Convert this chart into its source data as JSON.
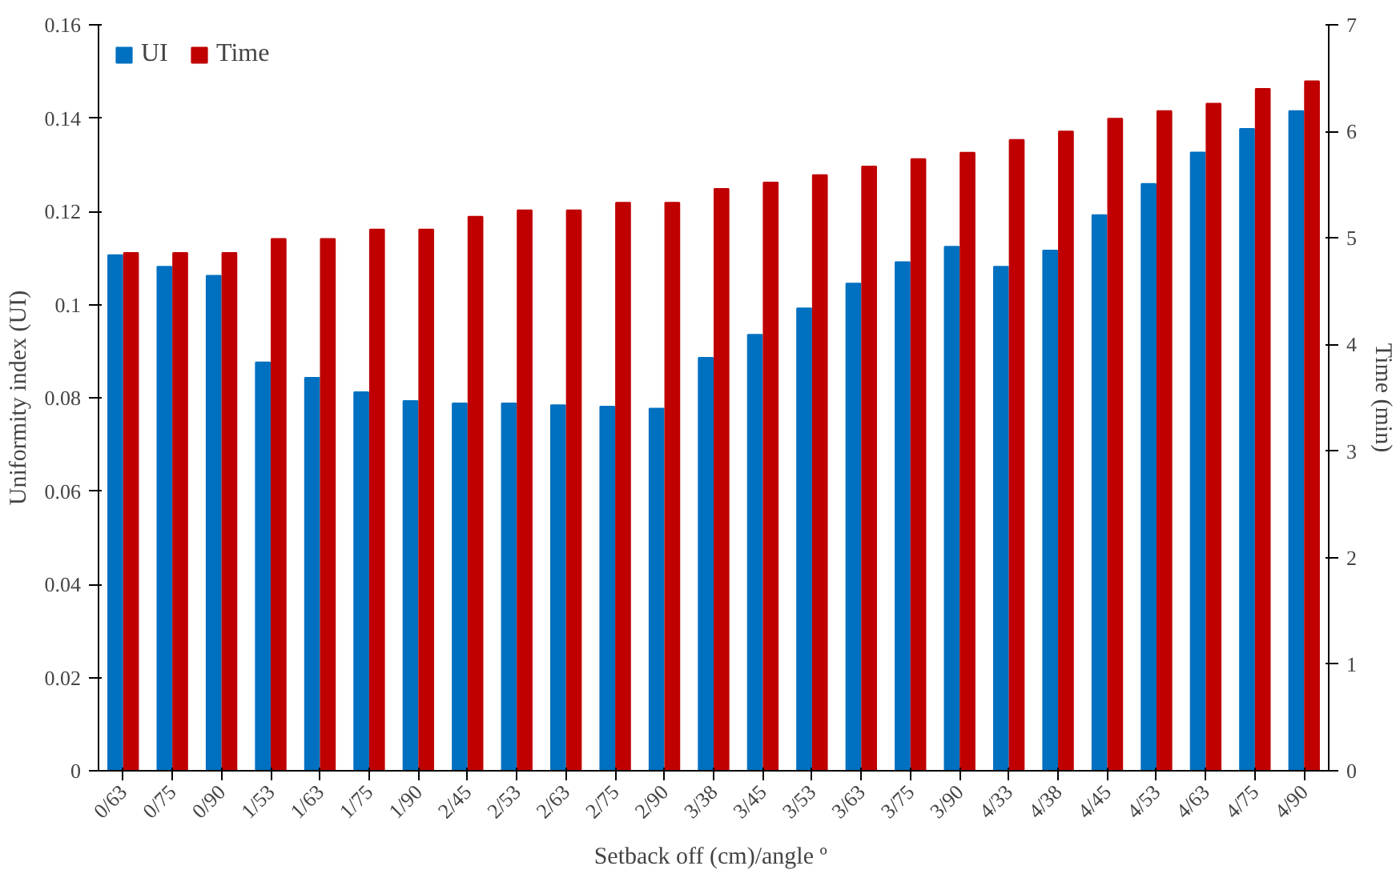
{
  "chart_data": {
    "type": "bar",
    "xlabel": "Setback off  (cm)/angle º",
    "ylabel": "Uniformity index (UI)",
    "y2label": "Time (min)",
    "categories": [
      "0/63",
      "0/75",
      "0/90",
      "1/53",
      "1/63",
      "1/75",
      "1/90",
      "2/45",
      "2/53",
      "2/63",
      "2/75",
      "2/90",
      "3/38",
      "3/45",
      "3/53",
      "3/63",
      "3/75",
      "3/90",
      "4/33",
      "4/38",
      "4/45",
      "4/53",
      "4/63",
      "4/75",
      "4/90"
    ],
    "series": [
      {
        "name": "UI",
        "color": "#0070c0",
        "values": [
          0.1106,
          0.1081,
          0.1062,
          0.0876,
          0.0843,
          0.0812,
          0.0793,
          0.0788,
          0.0788,
          0.0784,
          0.0781,
          0.0777,
          0.0886,
          0.0935,
          0.0992,
          0.1045,
          0.1091,
          0.1124,
          0.1081,
          0.1116,
          0.1192,
          0.1259,
          0.1326,
          0.1377,
          0.1415
        ]
      },
      {
        "name": "Time",
        "color": "#c00000",
        "axis": "y2",
        "values": [
          4.86,
          4.86,
          4.86,
          4.99,
          4.99,
          5.08,
          5.08,
          5.2,
          5.26,
          5.26,
          5.33,
          5.33,
          5.46,
          5.52,
          5.59,
          5.67,
          5.74,
          5.8,
          5.92,
          6.0,
          6.12,
          6.19,
          6.26,
          6.4,
          6.47
        ]
      }
    ],
    "ylim": [
      0,
      0.16
    ],
    "yticks": [
      0,
      0.02,
      0.04,
      0.06,
      0.08,
      0.1,
      0.12,
      0.14,
      0.16
    ],
    "y2lim": [
      0,
      7
    ],
    "y2ticks": [
      0,
      1,
      2,
      3,
      4,
      5,
      6,
      7
    ],
    "grid": false,
    "legend": "top left"
  }
}
